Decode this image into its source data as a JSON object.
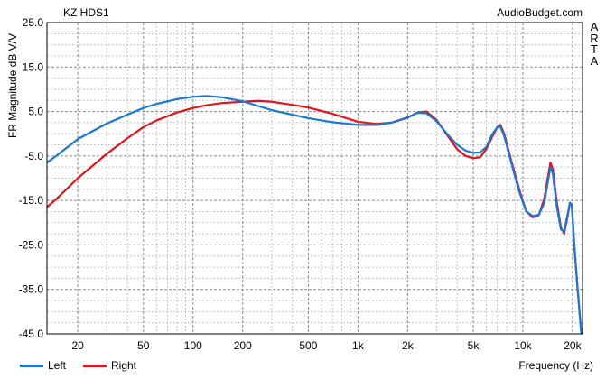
{
  "chart_data": {
    "type": "line",
    "title": "KZ HDS1",
    "source": "AudioBudget.com",
    "watermark": [
      "A",
      "R",
      "T",
      "A"
    ],
    "xlabel": "Frequency (Hz)",
    "ylabel": "FR Magnitude dB V/V",
    "x_scale": "log",
    "xlim": [
      13,
      23000
    ],
    "ylim": [
      -45,
      25
    ],
    "y_ticks": [
      "25.0",
      "15.0",
      "5.0",
      "-5.0",
      "-15.0",
      "-25.0",
      "-35.0",
      "-45.0"
    ],
    "x_ticks": [
      {
        "value": 20,
        "label": "20"
      },
      {
        "value": 50,
        "label": "50"
      },
      {
        "value": 100,
        "label": "100"
      },
      {
        "value": 200,
        "label": "200"
      },
      {
        "value": 500,
        "label": "500"
      },
      {
        "value": 1000,
        "label": "1k"
      },
      {
        "value": 2000,
        "label": "2k"
      },
      {
        "value": 5000,
        "label": "5k"
      },
      {
        "value": 10000,
        "label": "10k"
      },
      {
        "value": 20000,
        "label": "20k"
      }
    ],
    "grid": true,
    "series": [
      {
        "name": "Left",
        "color": "#1a78d2",
        "points": [
          [
            13,
            -6.5
          ],
          [
            15,
            -4.8
          ],
          [
            20,
            -1.2
          ],
          [
            30,
            2.3
          ],
          [
            40,
            4.3
          ],
          [
            50,
            5.8
          ],
          [
            60,
            6.7
          ],
          [
            80,
            7.8
          ],
          [
            100,
            8.3
          ],
          [
            120,
            8.5
          ],
          [
            150,
            8.2
          ],
          [
            200,
            7.3
          ],
          [
            300,
            5.3
          ],
          [
            500,
            3.5
          ],
          [
            700,
            2.6
          ],
          [
            1000,
            2.0
          ],
          [
            1300,
            2.0
          ],
          [
            1600,
            2.5
          ],
          [
            2000,
            3.7
          ],
          [
            2300,
            4.7
          ],
          [
            2600,
            4.6
          ],
          [
            3000,
            2.8
          ],
          [
            3500,
            -0.2
          ],
          [
            4000,
            -2.5
          ],
          [
            4500,
            -3.8
          ],
          [
            5000,
            -4.3
          ],
          [
            5500,
            -4.2
          ],
          [
            6000,
            -3.0
          ],
          [
            6500,
            -0.2
          ],
          [
            7000,
            1.5
          ],
          [
            7300,
            1.6
          ],
          [
            7700,
            -0.5
          ],
          [
            8500,
            -6.5
          ],
          [
            9500,
            -13.0
          ],
          [
            10500,
            -17.5
          ],
          [
            11500,
            -18.5
          ],
          [
            12500,
            -18.2
          ],
          [
            13500,
            -15.5
          ],
          [
            14300,
            -10.0
          ],
          [
            14700,
            -7.5
          ],
          [
            15200,
            -9.0
          ],
          [
            16000,
            -16.0
          ],
          [
            17000,
            -21.5
          ],
          [
            17800,
            -22.0
          ],
          [
            18700,
            -18.0
          ],
          [
            19300,
            -15.5
          ],
          [
            19800,
            -16.0
          ],
          [
            20500,
            -25.0
          ],
          [
            21500,
            -35.0
          ],
          [
            22500,
            -44.0
          ],
          [
            23000,
            -47.0
          ]
        ]
      },
      {
        "name": "Right",
        "color": "#e0141e",
        "points": [
          [
            13,
            -16.5
          ],
          [
            15,
            -14.5
          ],
          [
            20,
            -10.0
          ],
          [
            30,
            -4.5
          ],
          [
            40,
            -1.0
          ],
          [
            50,
            1.5
          ],
          [
            60,
            3.0
          ],
          [
            80,
            4.8
          ],
          [
            100,
            5.8
          ],
          [
            120,
            6.4
          ],
          [
            150,
            6.9
          ],
          [
            200,
            7.2
          ],
          [
            250,
            7.4
          ],
          [
            300,
            7.2
          ],
          [
            400,
            6.5
          ],
          [
            500,
            5.9
          ],
          [
            700,
            4.5
          ],
          [
            1000,
            2.7
          ],
          [
            1300,
            2.2
          ],
          [
            1600,
            2.5
          ],
          [
            2000,
            3.6
          ],
          [
            2300,
            4.8
          ],
          [
            2600,
            5.0
          ],
          [
            3000,
            3.1
          ],
          [
            3500,
            -0.5
          ],
          [
            4000,
            -3.5
          ],
          [
            4500,
            -5.0
          ],
          [
            5000,
            -5.5
          ],
          [
            5500,
            -5.3
          ],
          [
            6000,
            -3.5
          ],
          [
            6500,
            -0.8
          ],
          [
            7000,
            1.5
          ],
          [
            7300,
            2.0
          ],
          [
            7700,
            0.0
          ],
          [
            8500,
            -6.0
          ],
          [
            9500,
            -12.5
          ],
          [
            10500,
            -17.5
          ],
          [
            11500,
            -18.8
          ],
          [
            12500,
            -18.3
          ],
          [
            13500,
            -14.5
          ],
          [
            14300,
            -9.0
          ],
          [
            14700,
            -6.5
          ],
          [
            15200,
            -8.0
          ],
          [
            16000,
            -15.0
          ],
          [
            17000,
            -21.0
          ],
          [
            17800,
            -22.5
          ],
          [
            18700,
            -18.5
          ],
          [
            19300,
            -15.5
          ],
          [
            19800,
            -16.0
          ],
          [
            20500,
            -25.0
          ],
          [
            21500,
            -35.0
          ],
          [
            22500,
            -44.0
          ],
          [
            23000,
            -47.0
          ]
        ]
      }
    ]
  }
}
